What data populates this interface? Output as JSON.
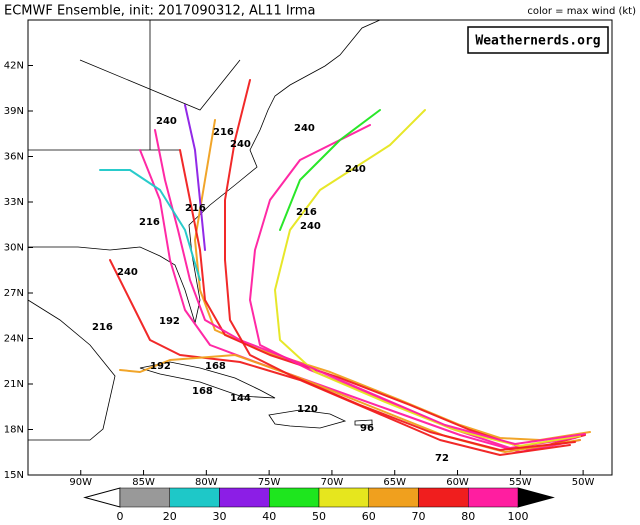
{
  "header": {
    "title": "ECMWF Ensemble, init: 2017090312, AL11 Irma",
    "legend_note": "color = max wind (kt)",
    "watermark": "Weathernerds.org"
  },
  "map": {
    "lon_range": [
      -94.2,
      -47.7
    ],
    "lat_range": [
      15,
      45
    ],
    "lon_ticks": [
      {
        "value": -90,
        "label": "90W"
      },
      {
        "value": -85,
        "label": "85W"
      },
      {
        "value": -80,
        "label": "80W"
      },
      {
        "value": -75,
        "label": "75W"
      },
      {
        "value": -70,
        "label": "70W"
      },
      {
        "value": -65,
        "label": "65W"
      },
      {
        "value": -60,
        "label": "60W"
      },
      {
        "value": -55,
        "label": "55W"
      },
      {
        "value": -50,
        "label": "50W"
      }
    ],
    "lat_ticks": [
      {
        "value": 15,
        "label": "15N"
      },
      {
        "value": 18,
        "label": "18N"
      },
      {
        "value": 21,
        "label": "21N"
      },
      {
        "value": 24,
        "label": "24N"
      },
      {
        "value": 27,
        "label": "27N"
      },
      {
        "value": 30,
        "label": "30N"
      },
      {
        "value": 33,
        "label": "33N"
      },
      {
        "value": 36,
        "label": "36N"
      },
      {
        "value": 39,
        "label": "39N"
      },
      {
        "value": 42,
        "label": "42N"
      }
    ],
    "hour_labels": [
      "240",
      "240",
      "240",
      "240",
      "240",
      "216",
      "216",
      "216",
      "216",
      "240",
      "216",
      "192",
      "192",
      "168",
      "168",
      "144",
      "120",
      "96",
      "72"
    ]
  },
  "colorbar": {
    "levels": [
      0,
      20,
      30,
      40,
      50,
      60,
      70,
      80,
      100
    ],
    "colors": [
      "#999999",
      "#1ec8c8",
      "#8c1ee6",
      "#1ee61e",
      "#e6e61e",
      "#f0a01e",
      "#f01e1e",
      "#ff1ea0"
    ],
    "under_color": "#ffffff",
    "over_color": "#000000"
  }
}
